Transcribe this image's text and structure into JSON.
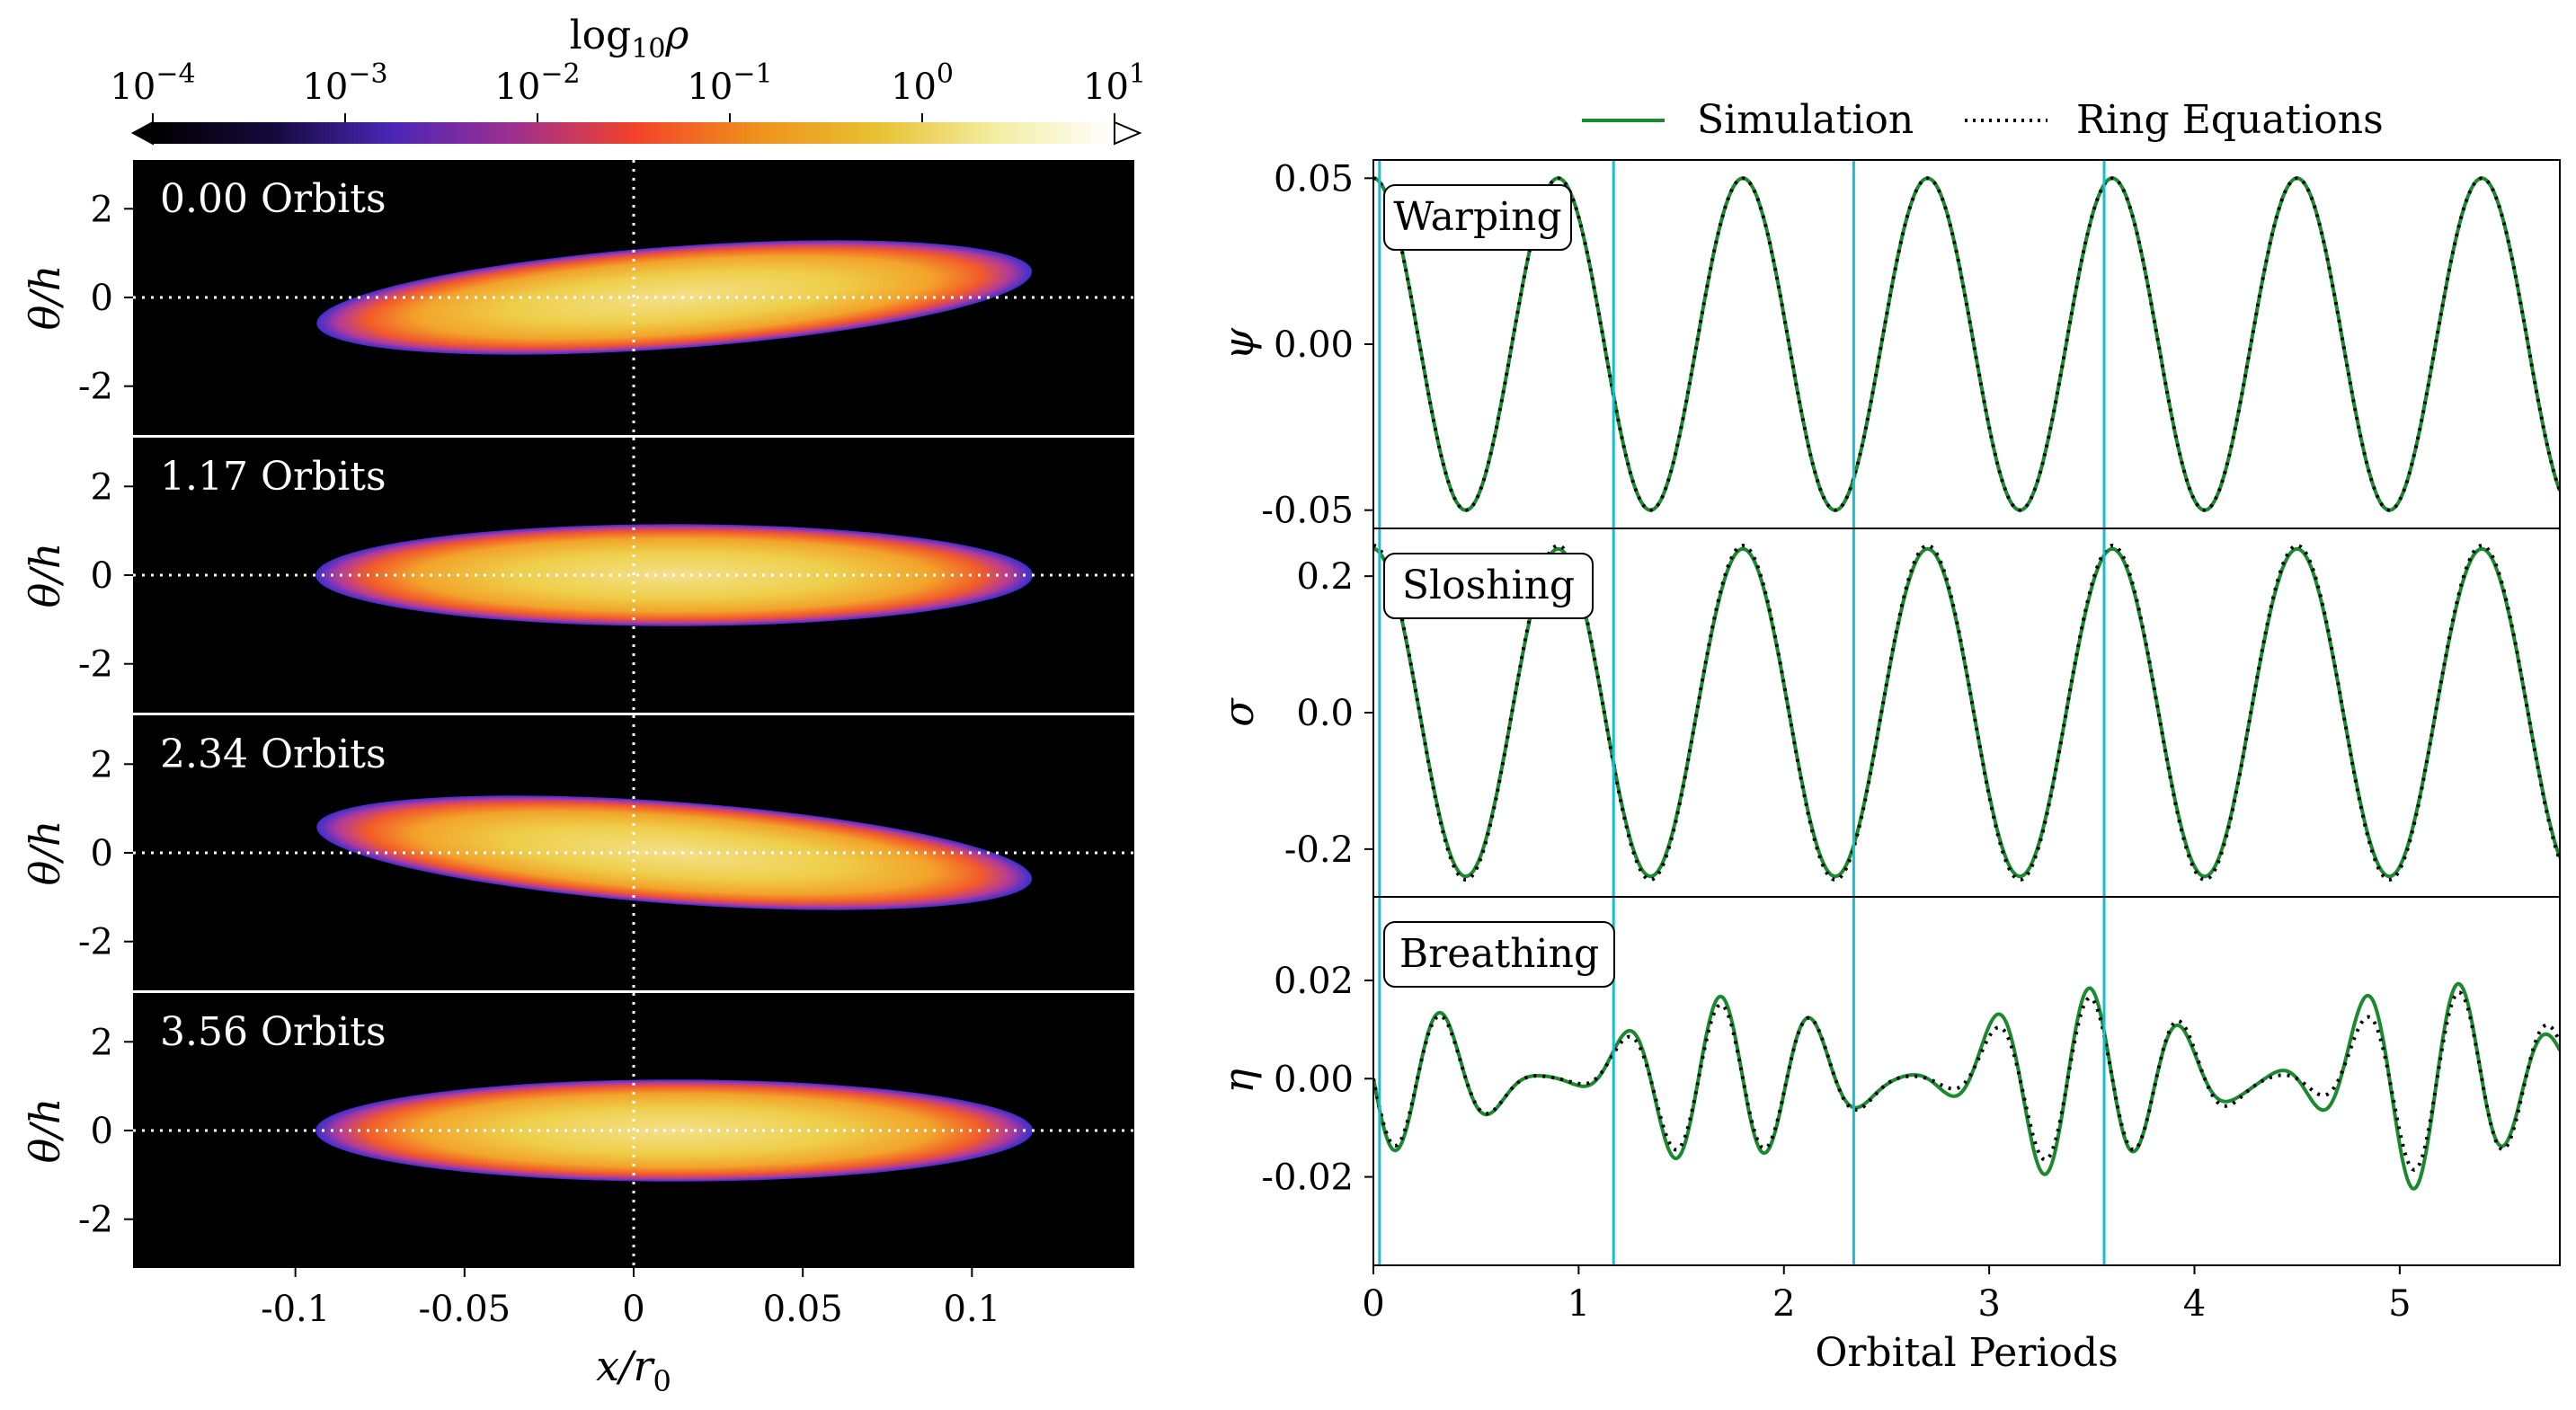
{
  "colorbar": {
    "label_base": "log",
    "label_sub": "10",
    "label_var": "ρ",
    "tick_labels": [
      {
        "base": "10",
        "exp": "−4"
      },
      {
        "base": "10",
        "exp": "−3"
      },
      {
        "base": "10",
        "exp": "−2"
      },
      {
        "base": "10",
        "exp": "−1"
      },
      {
        "base": "10",
        "exp": "0"
      },
      {
        "base": "10",
        "exp": "1"
      }
    ],
    "range": [
      -4,
      1
    ],
    "colors": [
      "#000000",
      "#15093d",
      "#4b26b8",
      "#9e2f8f",
      "#f2422a",
      "#f08f1c",
      "#e8c030",
      "#f3eda0",
      "#ffffff"
    ]
  },
  "left_panels": {
    "xlabel": "x/r",
    "xlabel_sub": "0",
    "ylabel": "θ/h",
    "x_ticks": [
      "-0.1",
      "-0.05",
      "0",
      "0.05",
      "0.1"
    ],
    "x_tick_values": [
      -0.1,
      -0.05,
      0,
      0.05,
      0.1
    ],
    "xlim": [
      -0.148,
      0.148
    ],
    "y_ticks": [
      "2",
      "0",
      "-2"
    ],
    "y_tick_values": [
      2,
      0,
      -2
    ],
    "ylim": [
      -3.1,
      3.1
    ],
    "panels": [
      {
        "time_label": "0.00 Orbits",
        "tilt": 1
      },
      {
        "time_label": "1.17 Orbits",
        "tilt": 0
      },
      {
        "time_label": "2.34 Orbits",
        "tilt": -1
      },
      {
        "time_label": "3.56 Orbits",
        "tilt": 0
      }
    ]
  },
  "legend": {
    "simulation": "Simulation",
    "ring": "Ring Equations"
  },
  "colors": {
    "simulation": "#1a8a2e",
    "ring": "#000000",
    "vline": "#17becf"
  },
  "chart_data": {
    "type": "line",
    "xlabel": "Orbital Periods",
    "xlim": [
      0,
      5.78
    ],
    "x_ticks": [
      "0",
      "1",
      "2",
      "3",
      "4",
      "5"
    ],
    "x_tick_values": [
      0,
      1,
      2,
      3,
      4,
      5
    ],
    "vertical_lines": [
      0.03,
      1.17,
      2.34,
      3.56
    ],
    "subplots": [
      {
        "name": "Warping",
        "ylabel": "ψ",
        "ylim": [
          -0.0555,
          0.0555
        ],
        "y_ticks": [
          "0.05",
          "0.00",
          "-0.05"
        ],
        "y_tick_values": [
          0.05,
          0.0,
          -0.05
        ],
        "series": [
          {
            "name": "Simulation",
            "amp": 0.05,
            "period": 0.9,
            "phase": 0
          },
          {
            "name": "Ring Equations",
            "amp": 0.05,
            "period": 0.9,
            "phase": 0
          }
        ]
      },
      {
        "name": "Sloshing",
        "ylabel": "σ",
        "ylim": [
          -0.27,
          0.27
        ],
        "y_ticks": [
          "0.2",
          "0.0",
          "-0.2"
        ],
        "y_tick_values": [
          0.2,
          0.0,
          -0.2
        ],
        "series": [
          {
            "name": "Simulation",
            "amp": 0.24,
            "period": 0.9,
            "phase": 0
          },
          {
            "name": "Ring Equations",
            "amp": 0.245,
            "period": 0.9,
            "phase": 0
          }
        ]
      },
      {
        "name": "Breathing",
        "ylabel": "η",
        "ylim": [
          -0.038,
          0.037
        ],
        "y_ticks": [
          "0.02",
          "0.00",
          "-0.02"
        ],
        "y_tick_values": [
          0.02,
          0.0,
          -0.02
        ],
        "series": [
          {
            "name": "Simulation",
            "amp1": 0.0165,
            "period1": 0.45,
            "amp2": 0.009,
            "period2": 1.72,
            "growth": 0.35
          },
          {
            "name": "Ring Equations",
            "amp1": 0.0155,
            "period1": 0.45,
            "amp2": 0.0075,
            "period2": 1.75,
            "growth": 0.25
          }
        ]
      }
    ]
  }
}
